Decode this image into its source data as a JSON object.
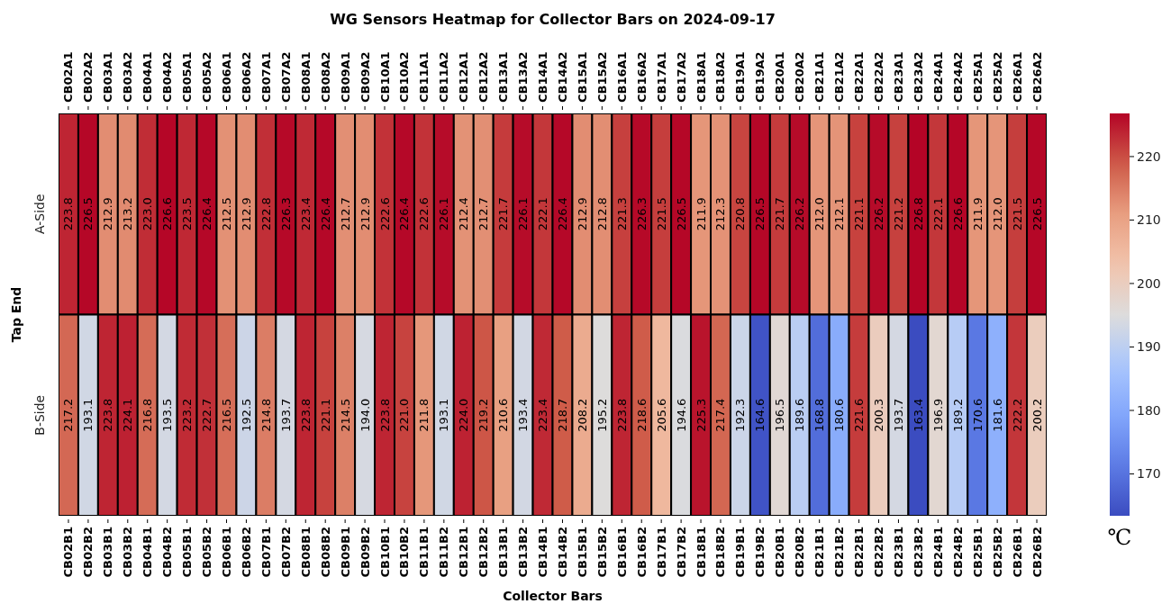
{
  "chart_data": {
    "type": "heatmap",
    "title": "WG Sensors Heatmap for Collector Bars on 2024-09-17",
    "xlabel": "Collector Bars",
    "ylabel": "Tap End",
    "clabel": "℃",
    "categories": [
      "CB02B1",
      "CB02B2",
      "CB03B1",
      "CB03B2",
      "CB04B1",
      "CB04B2",
      "CB05B1",
      "CB05B2",
      "CB06B1",
      "CB06B2",
      "CB07B1",
      "CB07B2",
      "CB08B1",
      "CB08B2",
      "CB09B1",
      "CB09B2",
      "CB10B1",
      "CB10B2",
      "CB11B1",
      "CB11B2",
      "CB12B1",
      "CB12B2",
      "CB13B1",
      "CB13B2",
      "CB14B1",
      "CB14B2",
      "CB15B1",
      "CB15B2",
      "CB16B1",
      "CB16B2",
      "CB17B1",
      "CB17B2",
      "CB18B1",
      "CB18B2",
      "CB19B1",
      "CB19B2",
      "CB20B1",
      "CB20B2",
      "CB21B1",
      "CB21B2",
      "CB22B1",
      "CB22B2",
      "CB23B1",
      "CB23B2",
      "CB24B1",
      "CB24B2",
      "CB25B1",
      "CB25B2",
      "CB26B1",
      "CB26B2"
    ],
    "annotations": [
      "CB02A1",
      "CB02A2",
      "CB03A1",
      "CB03A2",
      "CB04A1",
      "CB04A2",
      "CB05A1",
      "CB05A2",
      "CB06A1",
      "CB06A2",
      "CB07A1",
      "CB07A2",
      "CB08A1",
      "CB08A2",
      "CB09A1",
      "CB09A2",
      "CB10A1",
      "CB10A2",
      "CB11A1",
      "CB11A2",
      "CB12A1",
      "CB12A2",
      "CB13A1",
      "CB13A2",
      "CB14A1",
      "CB14A2",
      "CB15A1",
      "CB15A2",
      "CB16A1",
      "CB16A2",
      "CB17A1",
      "CB17A2",
      "CB18A1",
      "CB18A2",
      "CB19A1",
      "CB19A2",
      "CB20A1",
      "CB20A2",
      "CB21A1",
      "CB21A2",
      "CB22A1",
      "CB22A2",
      "CB23A1",
      "CB23A2",
      "CB24A1",
      "CB24A2",
      "CB25A1",
      "CB25A2",
      "CB26A1",
      "CB26A2"
    ],
    "y_categories": [
      "A-Side",
      "B-Side"
    ],
    "cells": [
      [
        223.8,
        226.5,
        212.9,
        213.2,
        223.0,
        226.6,
        223.5,
        226.4,
        212.5,
        212.9,
        222.8,
        226.3,
        223.4,
        226.4,
        212.7,
        212.9,
        222.6,
        226.4,
        222.6,
        226.1,
        212.4,
        212.7,
        221.7,
        226.1,
        222.1,
        226.4,
        212.9,
        212.8,
        221.3,
        226.3,
        221.5,
        226.5,
        211.9,
        212.3,
        220.8,
        226.5,
        221.7,
        226.2,
        212.0,
        212.1,
        221.1,
        226.2,
        221.2,
        226.8,
        222.1,
        226.6,
        211.9,
        212.0,
        221.5,
        226.5
      ],
      [
        217.2,
        193.1,
        223.8,
        224.1,
        216.8,
        193.5,
        223.2,
        222.7,
        216.5,
        192.5,
        214.8,
        193.7,
        223.8,
        221.1,
        214.5,
        194.0,
        223.8,
        221.0,
        211.8,
        193.1,
        224.0,
        219.2,
        210.6,
        193.4,
        223.4,
        218.7,
        208.2,
        195.2,
        223.8,
        218.6,
        205.6,
        194.6,
        225.3,
        217.4,
        192.3,
        164.6,
        196.5,
        189.6,
        168.8,
        180.6,
        221.6,
        200.3,
        193.7,
        163.4,
        196.9,
        189.2,
        170.6,
        181.6,
        222.2,
        200.2
      ]
    ],
    "cell_labels": [
      [
        "223.8",
        "226.5",
        "212.9",
        "213.2",
        "223.0",
        "226.6",
        "223.5",
        "226.4",
        "212.5",
        "212.9",
        "222.8",
        "226.3",
        "223.4",
        "226.4",
        "212.7",
        "212.9",
        "222.6",
        "226.4",
        "222.6",
        "226.1",
        "212.4",
        "212.7",
        "221.7",
        "226.1",
        "222.1",
        "226.4",
        "212.9",
        "212.8",
        "221.3",
        "226.3",
        "221.5",
        "226.5",
        "211.9",
        "212.3",
        "220.8",
        "226.5",
        "221.7",
        "226.2",
        "212.0",
        "212.1",
        "221.1",
        "226.2",
        "221.2",
        "226.8",
        "222.1",
        "226.6",
        "211.9",
        "212.0",
        "221.5",
        "226.5"
      ],
      [
        "217.2",
        "193.1",
        "223.8",
        "224.1",
        "216.8",
        "193.5",
        "223.2",
        "222.7",
        "216.5",
        "192.5",
        "214.8",
        "193.7",
        "223.8",
        "221.1",
        "214.5",
        "194.0",
        "223.8",
        "221.0",
        "211.8",
        "193.1",
        "224.0",
        "219.2",
        "210.6",
        "193.4",
        "223.4",
        "218.7",
        "208.2",
        "195.2",
        "223.8",
        "218.6",
        "205.6",
        "194.6",
        "225.3",
        "217.4",
        "192.3",
        "164.6",
        "196.5",
        "189.6",
        "168.8",
        "180.6",
        "221.6",
        "200.3",
        "193.7",
        "163.4",
        "196.9",
        "189.2",
        "170.6",
        "181.6",
        "222.2",
        "200.2"
      ]
    ],
    "clim": [
      163.4,
      226.8
    ],
    "cticks": [
      170,
      180,
      190,
      200,
      210,
      220
    ]
  }
}
